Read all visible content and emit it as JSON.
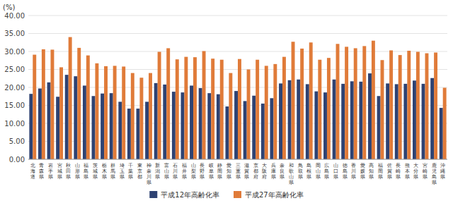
{
  "chart_data": {
    "type": "bar",
    "y_label": "(%)",
    "categories": [
      "北\n海\n道",
      "青\n森\n県",
      "岩\n手\n県",
      "宮\n城\n県",
      "秋\n田\n県",
      "山\n形\n県",
      "福\n島\n県",
      "茨\n城\n県",
      "栃\n木\n県",
      "群\n馬\n県",
      "埼\n玉\n県",
      "千\n葉\n県",
      "東\n京\n都",
      "神\n奈\n川\n県",
      "新\n潟\n県",
      "富\n山\n県",
      "石\n川\n県",
      "福\n井\n県",
      "山\n梨\n県",
      "長\n野\n県",
      "岐\n阜\n県",
      "静\n岡\n県",
      "愛\n知\n県",
      "三\n重\n県",
      "滋\n賀\n県",
      "京\n都\n府",
      "大\n阪\n府",
      "兵\n庫\n県",
      "奈\n良\n県",
      "和\n歌\n山\n県",
      "鳥\n取\n県",
      "島\n根\n県",
      "岡\n山\n県",
      "広\n島\n県",
      "山\n口\n県",
      "徳\n島\n県",
      "香\n川\n県",
      "愛\n媛\n県",
      "高\n知\n県",
      "福\n岡\n県",
      "佐\n賀\n県",
      "長\n崎\n県",
      "熊\n本\n県",
      "大\n分\n県",
      "宮\n崎\n県",
      "鹿\n児\n島\n県",
      "沖\n縄\n県"
    ],
    "series": [
      {
        "name": "平成12年高齢化率",
        "color": "#2E4272",
        "values": [
          18.2,
          19.7,
          21.4,
          17.4,
          23.5,
          23.1,
          20.5,
          17.6,
          18.3,
          18.4,
          16.0,
          14.1,
          14.1,
          16.0,
          21.2,
          20.8,
          18.8,
          18.6,
          20.5,
          19.8,
          18.4,
          18.1,
          14.7,
          19.0,
          16.2,
          17.7,
          15.5,
          17.0,
          21.1,
          22.0,
          22.2,
          20.9,
          18.9,
          18.6,
          22.2,
          21.0,
          21.7,
          21.6,
          23.9,
          17.6,
          21.1,
          20.9,
          21.0,
          21.9,
          21.0,
          22.6,
          14.3
        ]
      },
      {
        "name": "平成27年高齢化率",
        "color": "#E07B39",
        "values": [
          29.1,
          30.6,
          30.5,
          25.6,
          34.0,
          31.0,
          28.9,
          26.7,
          25.9,
          26.0,
          25.8,
          24.0,
          22.7,
          24.0,
          29.9,
          30.9,
          27.8,
          28.5,
          28.4,
          30.1,
          28.0,
          27.7,
          24.0,
          27.9,
          25.0,
          27.7,
          26.0,
          26.5,
          28.5,
          32.7,
          30.8,
          32.5,
          27.7,
          28.2,
          32.1,
          31.3,
          30.9,
          31.5,
          33.0,
          27.6,
          30.3,
          29.0,
          30.2,
          29.9,
          29.5,
          29.7,
          19.9
        ]
      }
    ],
    "ylim": [
      0,
      40
    ],
    "yticks": [
      {
        "value": 0.0,
        "label": "0.00"
      },
      {
        "value": 5.0,
        "label": "5.00"
      },
      {
        "value": 10.0,
        "label": "10.00"
      },
      {
        "value": 15.0,
        "label": "15.00"
      },
      {
        "value": 20.0,
        "label": "20.00"
      },
      {
        "value": 25.0,
        "label": "25.00"
      },
      {
        "value": 30.0,
        "label": "30.00"
      },
      {
        "value": 35.0,
        "label": "35.00"
      },
      {
        "value": 40.0,
        "label": "40.00"
      }
    ],
    "grid": true,
    "legend": "bottom"
  }
}
